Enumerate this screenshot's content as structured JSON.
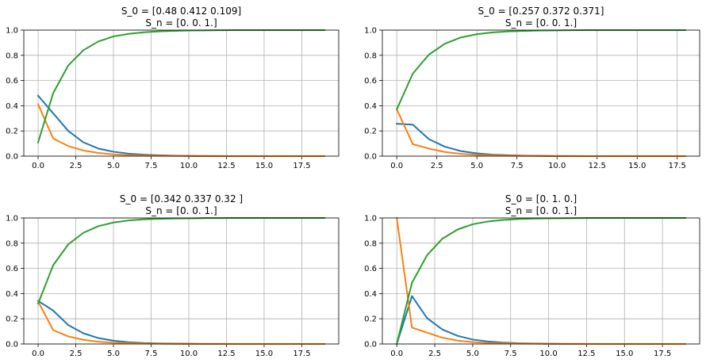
{
  "colors": {
    "series1": "#1f77b4",
    "series2": "#ff7f0e",
    "series3": "#2ca02c",
    "grid": "#b0b0b0"
  },
  "chart_data": [
    {
      "type": "line",
      "title": "S_0 = [0.48  0.412 0.109]",
      "subtitle": "S_n = [0. 0. 1.]",
      "xticks": [
        "0.0",
        "2.5",
        "5.0",
        "7.5",
        "10.0",
        "12.5",
        "15.0",
        "17.5"
      ],
      "yticks": [
        "0.0",
        "0.2",
        "0.4",
        "0.6",
        "0.8",
        "1.0"
      ],
      "xlim": [
        -0.95,
        19.95
      ],
      "ylim": [
        0,
        1
      ],
      "grid": true,
      "x": [
        0,
        1,
        2,
        3,
        4,
        5,
        6,
        7,
        8,
        9,
        10,
        11,
        12,
        13,
        14,
        15,
        16,
        17,
        18,
        19
      ],
      "series": [
        {
          "color": "series1",
          "values": [
            0.48,
            0.34,
            0.2,
            0.11,
            0.06,
            0.035,
            0.02,
            0.012,
            0.007,
            0.004,
            0.002,
            0.001,
            0.001,
            0,
            0,
            0,
            0,
            0,
            0,
            0
          ]
        },
        {
          "color": "series2",
          "values": [
            0.412,
            0.14,
            0.08,
            0.045,
            0.025,
            0.014,
            0.008,
            0.005,
            0.003,
            0.002,
            0.001,
            0.001,
            0,
            0,
            0,
            0,
            0,
            0,
            0,
            0
          ]
        },
        {
          "color": "series3",
          "values": [
            0.109,
            0.5,
            0.72,
            0.84,
            0.91,
            0.95,
            0.97,
            0.983,
            0.99,
            0.994,
            0.997,
            0.998,
            0.999,
            1,
            1,
            1,
            1,
            1,
            1,
            1
          ]
        }
      ]
    },
    {
      "type": "line",
      "title": "S_0 = [0.257 0.372 0.371]",
      "subtitle": "S_n = [0. 0. 1.]",
      "xticks": [
        "0.0",
        "2.5",
        "5.0",
        "7.5",
        "10.0",
        "12.5",
        "15.0",
        "17.5"
      ],
      "yticks": [
        "0.0",
        "0.2",
        "0.4",
        "0.6",
        "0.8",
        "1.0"
      ],
      "xlim": [
        -0.9,
        18.9
      ],
      "ylim": [
        0,
        1
      ],
      "grid": true,
      "x": [
        0,
        1,
        2,
        3,
        4,
        5,
        6,
        7,
        8,
        9,
        10,
        11,
        12,
        13,
        14,
        15,
        16,
        17,
        18
      ],
      "series": [
        {
          "color": "series1",
          "values": [
            0.257,
            0.25,
            0.135,
            0.075,
            0.04,
            0.022,
            0.012,
            0.007,
            0.004,
            0.002,
            0.001,
            0.001,
            0,
            0,
            0,
            0,
            0,
            0,
            0
          ]
        },
        {
          "color": "series2",
          "values": [
            0.372,
            0.095,
            0.06,
            0.033,
            0.018,
            0.01,
            0.006,
            0.003,
            0.002,
            0.001,
            0.001,
            0,
            0,
            0,
            0,
            0,
            0,
            0,
            0
          ]
        },
        {
          "color": "series3",
          "values": [
            0.371,
            0.655,
            0.805,
            0.892,
            0.942,
            0.968,
            0.982,
            0.99,
            0.994,
            0.997,
            0.998,
            0.999,
            1,
            1,
            1,
            1,
            1,
            1,
            1
          ]
        }
      ]
    },
    {
      "type": "line",
      "title": "S_0 = [0.342 0.337 0.32 ]",
      "subtitle": "S_n = [0. 0. 1.]",
      "xticks": [
        "0.0",
        "2.5",
        "5.0",
        "7.5",
        "10.0",
        "12.5",
        "15.0",
        "17.5"
      ],
      "yticks": [
        "0.0",
        "0.2",
        "0.4",
        "0.6",
        "0.8",
        "1.0"
      ],
      "xlim": [
        -0.95,
        19.95
      ],
      "ylim": [
        0,
        1
      ],
      "grid": true,
      "x": [
        0,
        1,
        2,
        3,
        4,
        5,
        6,
        7,
        8,
        9,
        10,
        11,
        12,
        13,
        14,
        15,
        16,
        17,
        18,
        19
      ],
      "series": [
        {
          "color": "series1",
          "values": [
            0.342,
            0.265,
            0.15,
            0.085,
            0.047,
            0.026,
            0.014,
            0.008,
            0.005,
            0.003,
            0.002,
            0.001,
            0.001,
            0,
            0,
            0,
            0,
            0,
            0,
            0
          ]
        },
        {
          "color": "series2",
          "values": [
            0.337,
            0.11,
            0.06,
            0.033,
            0.018,
            0.01,
            0.006,
            0.003,
            0.002,
            0.001,
            0.001,
            0,
            0,
            0,
            0,
            0,
            0,
            0,
            0,
            0
          ]
        },
        {
          "color": "series3",
          "values": [
            0.32,
            0.625,
            0.79,
            0.882,
            0.935,
            0.964,
            0.98,
            0.989,
            0.993,
            0.996,
            0.997,
            0.999,
            0.999,
            1,
            1,
            1,
            1,
            1,
            1,
            1
          ]
        }
      ]
    },
    {
      "type": "line",
      "title": "S_0 = [0. 1. 0.]",
      "subtitle": "S_n = [0. 0. 1.]",
      "xticks": [
        "0.0",
        "2.5",
        "5.0",
        "7.5",
        "10.0",
        "12.5",
        "15.0",
        "17.5"
      ],
      "yticks": [
        "0.0",
        "0.2",
        "0.4",
        "0.6",
        "0.8",
        "1.0"
      ],
      "xlim": [
        -0.95,
        19.95
      ],
      "ylim": [
        0,
        1
      ],
      "grid": true,
      "x": [
        0,
        1,
        2,
        3,
        4,
        5,
        6,
        7,
        8,
        9,
        10,
        11,
        12,
        13,
        14,
        15,
        16,
        17,
        18,
        19
      ],
      "series": [
        {
          "color": "series1",
          "values": [
            0,
            0.38,
            0.205,
            0.115,
            0.065,
            0.035,
            0.02,
            0.011,
            0.006,
            0.004,
            0.002,
            0.001,
            0.001,
            0,
            0,
            0,
            0,
            0,
            0,
            0
          ]
        },
        {
          "color": "series2",
          "values": [
            1.0,
            0.13,
            0.09,
            0.05,
            0.027,
            0.015,
            0.008,
            0.005,
            0.003,
            0.002,
            0.001,
            0.001,
            0,
            0,
            0,
            0,
            0,
            0,
            0,
            0
          ]
        },
        {
          "color": "series3",
          "values": [
            0,
            0.485,
            0.705,
            0.835,
            0.908,
            0.95,
            0.972,
            0.984,
            0.991,
            0.995,
            0.997,
            0.998,
            0.999,
            1,
            1,
            1,
            1,
            1,
            1,
            1
          ]
        }
      ]
    }
  ]
}
